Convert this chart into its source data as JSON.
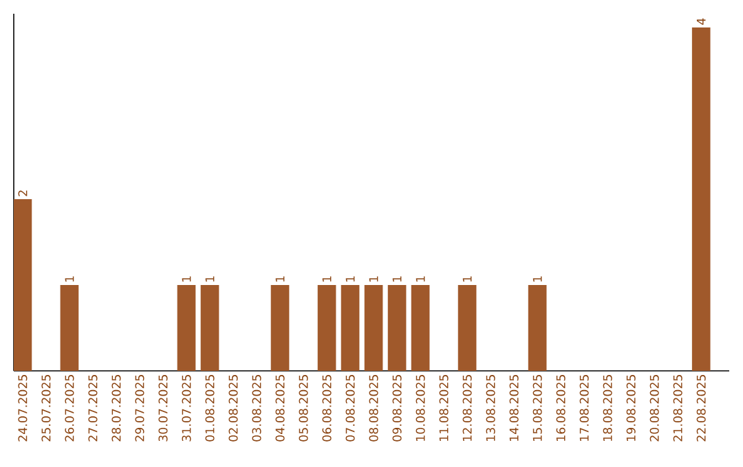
{
  "chart_data": {
    "type": "bar",
    "categories": [
      "24.07.2025",
      "25.07.2025",
      "26.07.2025",
      "27.07.2025",
      "28.07.2025",
      "29.07.2025",
      "30.07.2025",
      "31.07.2025",
      "01.08.2025",
      "02.08.2025",
      "03.08.2025",
      "04.08.2025",
      "05.08.2025",
      "06.08.2025",
      "07.08.2025",
      "08.08.2025",
      "09.08.2025",
      "10.08.2025",
      "11.08.2025",
      "12.08.2025",
      "13.08.2025",
      "14.08.2025",
      "15.08.2025",
      "16.08.2025",
      "17.08.2025",
      "18.08.2025",
      "19.08.2025",
      "20.08.2025",
      "21.08.2025",
      "22.08.2025"
    ],
    "values": [
      2,
      0,
      1,
      0,
      0,
      0,
      0,
      1,
      1,
      0,
      0,
      1,
      0,
      1,
      1,
      1,
      1,
      1,
      0,
      1,
      0,
      0,
      1,
      0,
      0,
      0,
      0,
      0,
      0,
      4
    ],
    "value_labels": [
      "2",
      null,
      "1",
      null,
      null,
      null,
      null,
      "1",
      "1",
      null,
      null,
      "1",
      null,
      "1",
      "1",
      "1",
      "1",
      "1",
      null,
      "1",
      null,
      null,
      "1",
      null,
      null,
      null,
      null,
      null,
      null,
      "4"
    ],
    "color": "#a0592b"
  }
}
